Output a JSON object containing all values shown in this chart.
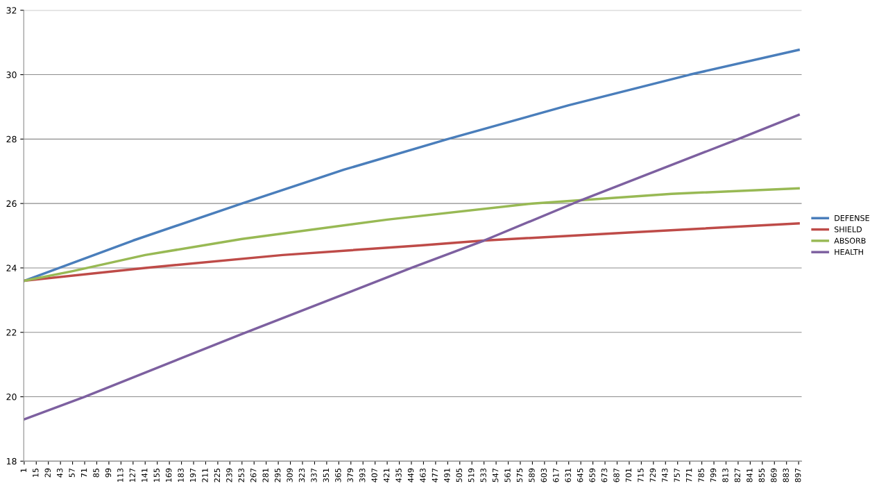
{
  "chart_data": {
    "type": "line",
    "xlim": [
      0.5,
      900.5
    ],
    "ylim": [
      18,
      32
    ],
    "yticks": [
      18,
      20,
      22,
      24,
      26,
      28,
      30,
      32
    ],
    "xticks": [
      1,
      15,
      29,
      43,
      57,
      71,
      85,
      99,
      113,
      127,
      141,
      155,
      169,
      183,
      197,
      211,
      225,
      239,
      253,
      267,
      281,
      295,
      309,
      323,
      337,
      351,
      365,
      379,
      393,
      407,
      421,
      435,
      449,
      463,
      477,
      491,
      505,
      519,
      533,
      547,
      561,
      575,
      589,
      603,
      617,
      631,
      645,
      659,
      673,
      687,
      701,
      715,
      729,
      743,
      757,
      771,
      785,
      799,
      813,
      827,
      841,
      855,
      869,
      883,
      897
    ],
    "grid": "y",
    "legend": "right",
    "marker": "none",
    "line_style": "solid",
    "series": [
      {
        "name": "DEFENSE",
        "color": "#4a7ebb",
        "x": [
          1,
          127,
          253,
          371,
          491,
          631,
          771,
          897
        ],
        "values": [
          23.6,
          24.85,
          26.0,
          27.05,
          28.0,
          29.05,
          30.0,
          30.77
        ]
      },
      {
        "name": "SHIELD",
        "color": "#be4b48",
        "x": [
          1,
          141,
          300,
          460,
          533,
          700,
          897
        ],
        "values": [
          23.6,
          24.0,
          24.4,
          24.7,
          24.85,
          25.1,
          25.38
        ]
      },
      {
        "name": "ABSORB",
        "color": "#98b954",
        "x": [
          1,
          57,
          141,
          253,
          421,
          589,
          750,
          897
        ],
        "values": [
          23.6,
          23.9,
          24.4,
          24.9,
          25.5,
          26.0,
          26.3,
          26.47
        ]
      },
      {
        "name": "HEALTH",
        "color": "#7d60a0",
        "x": [
          1,
          71,
          253,
          449,
          533,
          645,
          827,
          897
        ],
        "values": [
          19.3,
          20.0,
          21.95,
          24.0,
          24.85,
          26.1,
          28.0,
          28.75
        ]
      }
    ]
  }
}
